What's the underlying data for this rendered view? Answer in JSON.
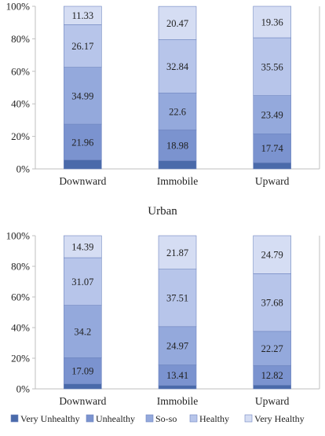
{
  "colors": {
    "Very Unhealthy": "#4a6aaa",
    "Unhealthy": "#7b93cf",
    "So-so": "#94a9dc",
    "Healthy": "#b7c5ea",
    "Very Healthy": "#d5ddf3",
    "axis": "#bfbfbf",
    "text": "#222222"
  },
  "legend": {
    "position": "bottom",
    "items": [
      "Very Unhealthy",
      "Unhealthy",
      "So-so",
      "Healthy",
      "Very Healthy"
    ]
  },
  "chart_data": [
    {
      "type": "bar",
      "stacked": true,
      "percent": true,
      "title": "",
      "categories": [
        "Downward",
        "Immobile",
        "Upward"
      ],
      "ylim": [
        0,
        100
      ],
      "yticks": [
        "0%",
        "20%",
        "40%",
        "60%",
        "80%",
        "100%"
      ],
      "grid": false,
      "series": [
        {
          "name": "Very Unhealthy",
          "values": [
            5.55,
            5.05,
            3.85
          ]
        },
        {
          "name": "Unhealthy",
          "values": [
            21.96,
            18.98,
            17.74
          ]
        },
        {
          "name": "So-so",
          "values": [
            34.99,
            22.6,
            23.49
          ]
        },
        {
          "name": "Healthy",
          "values": [
            26.17,
            32.84,
            35.56
          ]
        },
        {
          "name": "Very Healthy",
          "values": [
            11.33,
            20.47,
            19.36
          ]
        }
      ]
    },
    {
      "type": "bar",
      "stacked": true,
      "percent": true,
      "title": "Urban",
      "categories": [
        "Downward",
        "Immobile",
        "Upward"
      ],
      "ylim": [
        0,
        100
      ],
      "yticks": [
        "0%",
        "20%",
        "40%",
        "60%",
        "80%",
        "100%"
      ],
      "grid": false,
      "series": [
        {
          "name": "Very Unhealthy",
          "values": [
            3.25,
            2.24,
            2.44
          ]
        },
        {
          "name": "Unhealthy",
          "values": [
            17.09,
            13.41,
            12.82
          ]
        },
        {
          "name": "So-so",
          "values": [
            34.2,
            24.97,
            22.27
          ]
        },
        {
          "name": "Healthy",
          "values": [
            31.07,
            37.51,
            37.68
          ]
        },
        {
          "name": "Very Healthy",
          "values": [
            14.39,
            21.87,
            24.79
          ]
        }
      ]
    }
  ]
}
